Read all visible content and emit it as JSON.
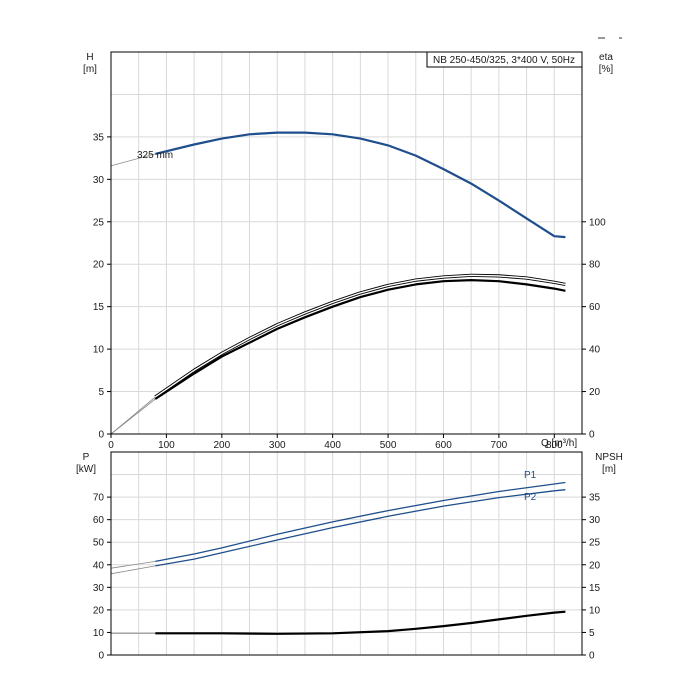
{
  "chart_data": [
    {
      "type": "line",
      "panel": "top",
      "info_box": "NB 250-450/325, 3*400 V, 50Hz",
      "x_axis": {
        "label": "Q [m³/h]",
        "range": [
          0,
          850
        ],
        "ticks": [
          0,
          100,
          200,
          300,
          400,
          500,
          600,
          700,
          800
        ],
        "grid_every": 50
      },
      "y_left": {
        "label_line1": "H",
        "label_line2": "[m]",
        "range": [
          0,
          45
        ],
        "ticks": [
          0,
          5,
          10,
          15,
          20,
          25,
          30,
          35
        ],
        "grid_every": 5
      },
      "y_right": {
        "label_line1": "eta",
        "label_line2": "[%]",
        "range": [
          0,
          180
        ],
        "ticks": [
          0,
          20,
          40,
          60,
          80,
          100
        ]
      },
      "grid": true,
      "series": [
        {
          "name": "325 mm",
          "axis": "left",
          "color": "#1f4e8c",
          "x": [
            80,
            150,
            200,
            250,
            300,
            350,
            400,
            450,
            500,
            550,
            600,
            650,
            700,
            750,
            800,
            820
          ],
          "values": [
            33.0,
            34.1,
            34.8,
            35.3,
            35.5,
            35.5,
            35.3,
            34.8,
            34.0,
            32.8,
            31.2,
            29.5,
            27.5,
            25.4,
            23.3,
            23.2
          ],
          "extrapolation": {
            "x": [
              0,
              80
            ],
            "values": [
              31.6,
              33.0
            ]
          }
        },
        {
          "axis": "right",
          "color": "#000000",
          "style": "outline",
          "x": [
            80,
            150,
            200,
            250,
            300,
            350,
            400,
            450,
            500,
            550,
            600,
            650,
            700,
            750,
            800,
            820
          ],
          "values": [
            17.5,
            30.0,
            38.0,
            45.0,
            51.5,
            57.0,
            62.0,
            66.5,
            70.0,
            72.5,
            74.0,
            74.8,
            74.5,
            73.5,
            71.5,
            70.5
          ],
          "extrapolation": {
            "x": [
              0,
              80
            ],
            "values": [
              0,
              17.5
            ]
          }
        },
        {
          "axis": "right",
          "color": "#000000",
          "style": "thick",
          "x": [
            80,
            150,
            200,
            250,
            300,
            350,
            400,
            450,
            500,
            550,
            600,
            650,
            700,
            750,
            800,
            820
          ],
          "values": [
            16.5,
            28.5,
            36.5,
            43.0,
            49.5,
            55.0,
            60.0,
            64.5,
            68.0,
            70.5,
            72.0,
            72.5,
            72.0,
            70.5,
            68.5,
            67.5
          ],
          "extrapolation": {
            "x": [
              0,
              80
            ],
            "values": [
              0,
              16.5
            ]
          }
        }
      ]
    },
    {
      "type": "line",
      "panel": "bottom",
      "x_axis": {
        "range": [
          0,
          850
        ],
        "grid_every": 50
      },
      "y_left": {
        "label_line1": "P",
        "label_line2": "[kW]",
        "range": [
          0,
          90
        ],
        "ticks": [
          0,
          10,
          20,
          30,
          40,
          50,
          60,
          70
        ],
        "grid_every": 10
      },
      "y_right": {
        "label_line1": "NPSH",
        "label_line2": "[m]",
        "range": [
          0,
          45
        ],
        "ticks": [
          0,
          5,
          10,
          15,
          20,
          25,
          30,
          35
        ]
      },
      "grid": true,
      "series": [
        {
          "name": "P1",
          "axis": "left",
          "color": "#1f4e8c",
          "x": [
            80,
            150,
            200,
            300,
            400,
            500,
            600,
            700,
            800,
            820
          ],
          "values": [
            41.5,
            44.8,
            47.5,
            53.5,
            59.0,
            64.0,
            68.5,
            72.5,
            75.8,
            76.5
          ],
          "extrapolation": {
            "x": [
              0,
              80
            ],
            "values": [
              38.5,
              41.5
            ]
          }
        },
        {
          "name": "P2",
          "axis": "left",
          "color": "#1f4e8c",
          "x": [
            80,
            150,
            200,
            300,
            400,
            500,
            600,
            700,
            800,
            820
          ],
          "values": [
            39.5,
            42.5,
            45.3,
            51.0,
            56.5,
            61.5,
            66.0,
            69.8,
            72.8,
            73.3
          ],
          "extrapolation": {
            "x": [
              0,
              80
            ],
            "values": [
              36.0,
              39.5
            ]
          }
        },
        {
          "axis": "right",
          "color": "#000000",
          "x": [
            80,
            200,
            300,
            400,
            500,
            550,
            600,
            650,
            700,
            750,
            800,
            820
          ],
          "values": [
            4.8,
            4.8,
            4.7,
            4.8,
            5.3,
            5.8,
            6.4,
            7.1,
            7.9,
            8.7,
            9.4,
            9.6
          ],
          "extrapolation": {
            "x": [
              0,
              80
            ],
            "values": [
              4.8,
              4.8
            ]
          }
        }
      ]
    }
  ]
}
